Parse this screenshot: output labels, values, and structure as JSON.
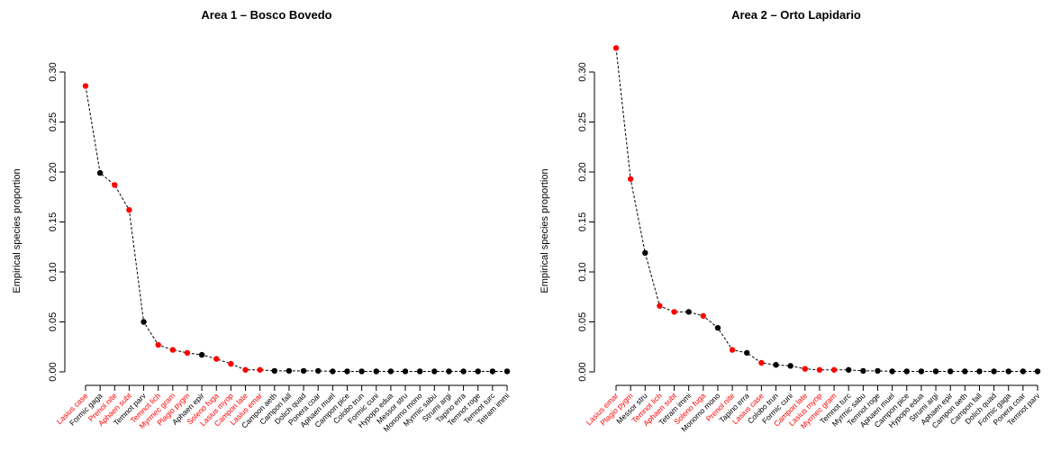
{
  "colors": {
    "highlight": "#ff0000",
    "normal": "#000000",
    "axis": "#000000"
  },
  "chart_data": [
    {
      "type": "line",
      "title": "Area 1 – Bosco Bovedo",
      "xlabel": "",
      "ylabel": "Empirical species proportion",
      "ylim": [
        0,
        0.3
      ],
      "yticks": [
        0.0,
        0.05,
        0.1,
        0.15,
        0.2,
        0.25,
        0.3
      ],
      "grid": false,
      "line_style": "dashed",
      "categories": [
        "Lasius case",
        "Formic gaga",
        "Prenol nite",
        "Aphaen subt",
        "Temnot parv",
        "Temnot lich",
        "Myrmec gram",
        "Plagio pygm",
        "Aphaen epir",
        "Soleno fuga",
        "Lasius myop",
        "Campon late",
        "Lasius emar",
        "Campon aeth",
        "Campon fall",
        "Dolich quad",
        "Ponera coar",
        "Aphaen muel",
        "Campon pice",
        "Colobo trun",
        "Formic cuni",
        "Hypopo edua",
        "Messor stru",
        "Monomo mono",
        "Myrmic sabu",
        "Strumi argi",
        "Tapino erra",
        "Temnot roge",
        "Temnot turc",
        "Tetram immi"
      ],
      "values": [
        0.286,
        0.199,
        0.187,
        0.162,
        0.05,
        0.027,
        0.022,
        0.019,
        0.017,
        0.013,
        0.008,
        0.002,
        0.002,
        0.001,
        0.001,
        0.001,
        0.001,
        0.0005,
        0.0005,
        0.0005,
        0.0005,
        0.0005,
        0.0005,
        0.0005,
        0.0005,
        0.0005,
        0.0005,
        0.0005,
        0.0005,
        0.0005
      ],
      "highlighted": [
        true,
        false,
        true,
        true,
        false,
        true,
        true,
        true,
        false,
        true,
        true,
        true,
        true,
        false,
        false,
        false,
        false,
        false,
        false,
        false,
        false,
        false,
        false,
        false,
        false,
        false,
        false,
        false,
        false,
        false
      ]
    },
    {
      "type": "line",
      "title": "Area 2 – Orto Lapidario",
      "xlabel": "",
      "ylabel": "Empirical species proportion",
      "ylim": [
        0,
        0.3
      ],
      "yticks": [
        0.0,
        0.05,
        0.1,
        0.15,
        0.2,
        0.25,
        0.3
      ],
      "grid": false,
      "line_style": "dashed",
      "categories": [
        "Lasius emar",
        "Plagio pygm",
        "Messor stru",
        "Temnot lich",
        "Aphaen subt",
        "Tetram immi",
        "Soleno fuga",
        "Monomo mono",
        "Prenol nite",
        "Tapino erra",
        "Lasius case",
        "Colobo trun",
        "Formic cuni",
        "Campon late",
        "Lasius myop",
        "Myrmec gram",
        "Temnot turc",
        "Myrmic sabu",
        "Temnot roge",
        "Aphaen muel",
        "Campon pice",
        "Hypopo edua",
        "Strumi argi",
        "Aphaen epir",
        "Campon aeth",
        "Campon fall",
        "Dolich quad",
        "Formic gaga",
        "Ponera coar",
        "Temnot parv"
      ],
      "values": [
        0.324,
        0.193,
        0.119,
        0.066,
        0.06,
        0.06,
        0.056,
        0.044,
        0.022,
        0.019,
        0.009,
        0.007,
        0.006,
        0.003,
        0.002,
        0.002,
        0.002,
        0.001,
        0.001,
        0.0005,
        0.0005,
        0.0005,
        0.0005,
        0.0005,
        0.0005,
        0.0005,
        0.0005,
        0.0005,
        0.0005,
        0.0005
      ],
      "highlighted": [
        true,
        true,
        false,
        true,
        true,
        false,
        true,
        false,
        true,
        false,
        true,
        false,
        false,
        true,
        true,
        true,
        false,
        false,
        false,
        false,
        false,
        false,
        false,
        false,
        false,
        false,
        false,
        false,
        false,
        false
      ]
    }
  ]
}
